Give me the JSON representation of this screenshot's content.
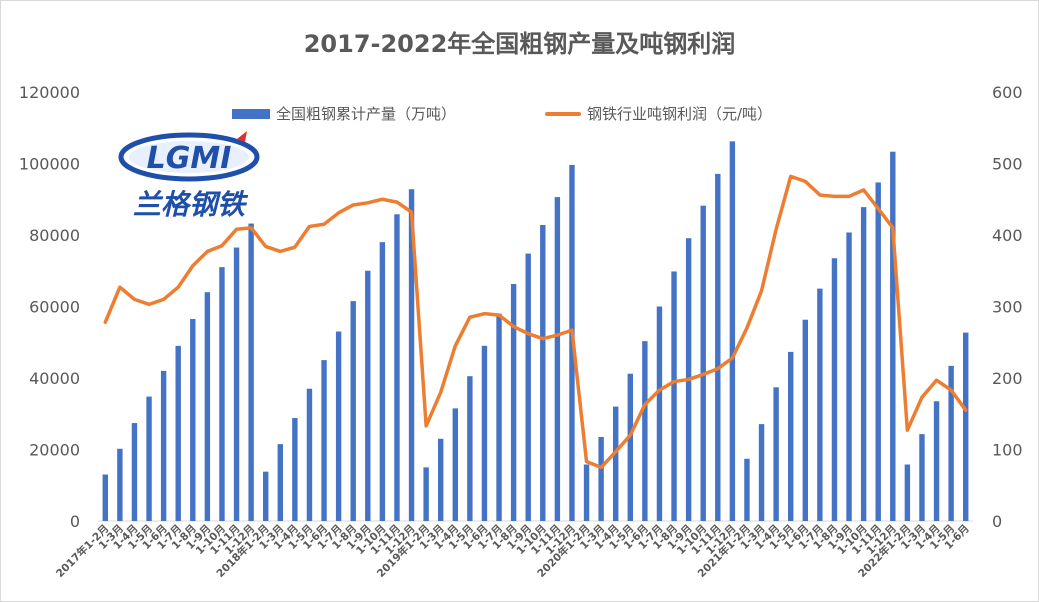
{
  "chart_data": {
    "type": "bar+line",
    "title": "2017-2022年全国粗钢产量及吨钢利润",
    "categories": [
      "2017年1-2月",
      "1-3月",
      "1-4月",
      "1-5月",
      "1-6月",
      "1-7月",
      "1-8月",
      "1-9月",
      "1-10月",
      "1-11月",
      "1-12月",
      "2018年1-2月",
      "1-3月",
      "1-4月",
      "1-5月",
      "1-6月",
      "1-7月",
      "1-8月",
      "1-9月",
      "1-10月",
      "1-11月",
      "1-12月",
      "2019年1-2月",
      "1-3月",
      "1-4月",
      "1-5月",
      "1-6月",
      "1-7月",
      "1-8月",
      "1-9月",
      "1-10月",
      "1-11月",
      "1-12月",
      "2020年1-2月",
      "1-3月",
      "1-4月",
      "1-5月",
      "1-6月",
      "1-7月",
      "1-8月",
      "1-9月",
      "1-10月",
      "1-11月",
      "1-12月",
      "2021年1-2月",
      "1-3月",
      "1-4月",
      "1-5月",
      "1-6月",
      "1-7月",
      "1-8月",
      "1-9月",
      "1-10月",
      "1-11月",
      "1-12月",
      "2022年1-2月",
      "1-3月",
      "1-4月",
      "1-5月",
      "1-6月"
    ],
    "series": [
      {
        "name": "全国粗钢累计产量（万吨）",
        "type": "bar",
        "axis": "left",
        "values": [
          13000,
          20200,
          27400,
          34800,
          42000,
          49000,
          56500,
          64000,
          71000,
          76500,
          83200,
          13800,
          21500,
          28800,
          37000,
          45000,
          53000,
          61500,
          70000,
          78000,
          85800,
          92800,
          15000,
          23000,
          31500,
          40500,
          49000,
          58000,
          66300,
          74800,
          82800,
          90600,
          99600,
          15800,
          23500,
          32000,
          41200,
          50300,
          60000,
          69800,
          79100,
          88200,
          97100,
          106200,
          17400,
          27100,
          37400,
          47300,
          56300,
          65000,
          73500,
          80700,
          87800,
          94700,
          103300,
          15800,
          24300,
          33500,
          43400,
          52700
        ]
      },
      {
        "name": "钢铁行业吨钢利润（元/吨）",
        "type": "line",
        "axis": "right",
        "values": [
          278,
          327,
          310,
          303,
          310,
          327,
          357,
          377,
          385,
          408,
          410,
          384,
          377,
          383,
          412,
          415,
          431,
          442,
          445,
          450,
          446,
          432,
          133,
          180,
          245,
          285,
          290,
          288,
          272,
          262,
          255,
          260,
          267,
          83,
          75,
          97,
          120,
          163,
          183,
          195,
          198,
          205,
          213,
          228,
          270,
          322,
          408,
          482,
          475,
          456,
          454,
          454,
          463,
          437,
          410,
          127,
          173,
          197,
          183,
          155
        ]
      }
    ],
    "y_left": {
      "min": 0,
      "max": 120000,
      "ticks": [
        "0",
        "20000",
        "40000",
        "60000",
        "80000",
        "100000",
        "120000"
      ]
    },
    "y_right": {
      "min": 0,
      "max": 600,
      "ticks": [
        "0",
        "100",
        "200",
        "300",
        "400",
        "500",
        "600"
      ]
    },
    "legend_position": "top",
    "grid": false,
    "colors": {
      "bar": "#4472c4",
      "line": "#ed7d31",
      "text": "#595959",
      "axis": "#d9d9d9"
    }
  },
  "logo": {
    "brand": "LGMI",
    "subtitle": "兰格钢铁"
  }
}
